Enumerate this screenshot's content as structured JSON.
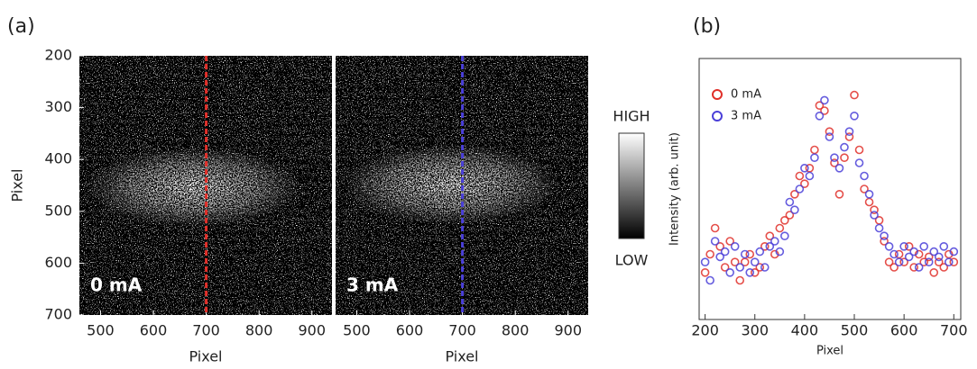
{
  "chart_data": [
    {
      "type": "image",
      "panel_label": "(a)",
      "xlabel": "Pixel",
      "ylabel": "Pixel",
      "xlim": [
        460,
        938
      ],
      "xticks": [
        500,
        600,
        700,
        800,
        900
      ],
      "ylim": [
        200,
        700
      ],
      "yticks": [
        200,
        300,
        400,
        500,
        600,
        700
      ],
      "cut_x": 700,
      "panels": [
        {
          "label": "0 mA",
          "cut_color": "#e0302a"
        },
        {
          "label": "3 mA",
          "cut_color": "#4a3fd8"
        }
      ],
      "colorbar": {
        "high": "HIGH",
        "low": "LOW"
      }
    },
    {
      "type": "scatter",
      "panel_label": "(b)",
      "xlabel": "Pixel",
      "ylabel": "Intensity (arb. unit)",
      "xlim": [
        188,
        714
      ],
      "xticks": [
        200,
        300,
        400,
        500,
        600,
        700
      ],
      "ylim": [
        0,
        100
      ],
      "x": [
        200,
        210,
        220,
        230,
        240,
        250,
        260,
        270,
        280,
        290,
        300,
        310,
        320,
        330,
        340,
        350,
        360,
        370,
        380,
        390,
        400,
        410,
        420,
        430,
        440,
        450,
        460,
        470,
        480,
        490,
        500,
        510,
        520,
        530,
        540,
        550,
        560,
        570,
        580,
        590,
        600,
        610,
        620,
        630,
        640,
        650,
        660,
        670,
        680,
        690,
        700
      ],
      "series": [
        {
          "name": "0 mA",
          "color": "#e0302a",
          "values": [
            18,
            25,
            35,
            28,
            20,
            30,
            22,
            15,
            22,
            25,
            18,
            20,
            28,
            32,
            25,
            35,
            38,
            40,
            48,
            55,
            52,
            58,
            65,
            82,
            80,
            72,
            60,
            48,
            62,
            70,
            86,
            65,
            50,
            45,
            42,
            38,
            30,
            22,
            20,
            25,
            22,
            28,
            20,
            25,
            22,
            24,
            18,
            22,
            20,
            25,
            22
          ]
        },
        {
          "name": "3 mA",
          "color": "#4a3fd8",
          "values": [
            22,
            15,
            30,
            24,
            26,
            18,
            28,
            20,
            25,
            18,
            22,
            26,
            20,
            28,
            30,
            26,
            32,
            45,
            42,
            50,
            58,
            55,
            62,
            78,
            84,
            70,
            62,
            58,
            66,
            72,
            78,
            60,
            55,
            48,
            40,
            35,
            32,
            28,
            25,
            22,
            28,
            24,
            26,
            20,
            28,
            22,
            26,
            24,
            28,
            22,
            26
          ]
        }
      ]
    }
  ]
}
